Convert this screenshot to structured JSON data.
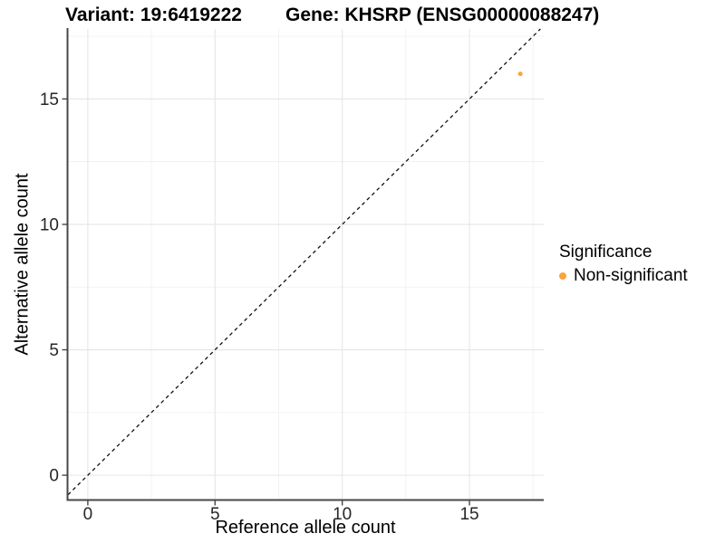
{
  "titles": {
    "variant": "Variant: 19:6419222",
    "gene": "Gene: KHSRP (ENSG00000088247)"
  },
  "axes": {
    "x_label": "Reference allele count",
    "y_label": "Alternative allele count"
  },
  "legend": {
    "title": "Significance",
    "items": [
      {
        "label": "Non-significant",
        "color": "#FAA43A"
      }
    ]
  },
  "colors": {
    "background": "#FFFFFF",
    "point": "#FAA43A",
    "axis_line": "#474747",
    "tick_mark": "#474747",
    "tick_label": "#262626",
    "grid_major": "#E6E6E6",
    "grid_minor": "#F1F1F1",
    "dashed_line": "#111111"
  },
  "chart_data": {
    "type": "scatter",
    "title": "Variant: 19:6419222",
    "subtitle": "Gene: KHSRP (ENSG00000088247)",
    "xlabel": "Reference allele count",
    "ylabel": "Alternative allele count",
    "xlim": [
      -0.78,
      17.92
    ],
    "ylim": [
      -0.97,
      17.79
    ],
    "x_ticks": [
      0,
      5,
      10,
      15
    ],
    "y_ticks": [
      0,
      5,
      10,
      15
    ],
    "x_minor_ticks": [
      2.5,
      7.5,
      12.5,
      17.5
    ],
    "y_minor_ticks": [
      2.5,
      7.5,
      12.5,
      17.5
    ],
    "grid": true,
    "legend_position": "right",
    "series": [
      {
        "name": "Non-significant",
        "color": "#FAA43A",
        "points": [
          {
            "x": 17,
            "y": 16
          }
        ]
      }
    ],
    "reference_line": {
      "type": "identity",
      "slope": 1,
      "intercept": 0,
      "style": "dashed",
      "color": "#111111"
    }
  }
}
